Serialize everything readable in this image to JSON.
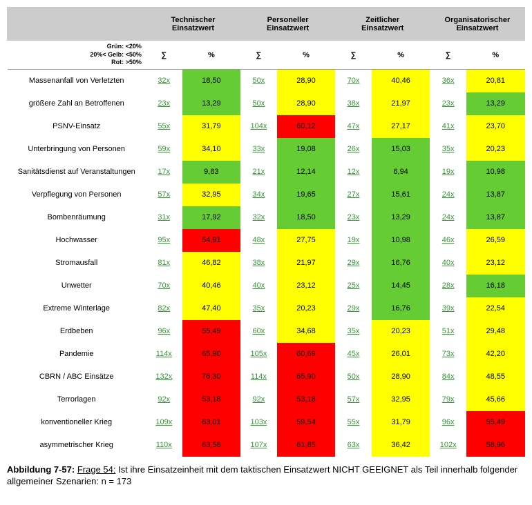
{
  "colors": {
    "green": "#66cc33",
    "yellow": "#ffff00",
    "red": "#ff0000",
    "header_bg": "#cccccc",
    "link": "#339933",
    "text": "#000000"
  },
  "thresholds": {
    "green_lt": 20,
    "yellow_lt": 50
  },
  "legend": {
    "line1": "Grün: <20%",
    "line2": "20%< Gelb: <50%",
    "line3": "Rot: >50%"
  },
  "column_groups": [
    "Technischer Einsatzwert",
    "Personeller Einsatzwert",
    "Zeitlicher Einsatzwert",
    "Organisatorischer Einsatzwert"
  ],
  "subheaders": {
    "sigma": "∑",
    "pct": "%"
  },
  "rows": [
    {
      "label": "Massenanfall von Verletzten",
      "cells": [
        {
          "s": "32x",
          "p": "18,50"
        },
        {
          "s": "50x",
          "p": "28,90"
        },
        {
          "s": "70x",
          "p": "40,46"
        },
        {
          "s": "36x",
          "p": "20,81"
        }
      ]
    },
    {
      "label": "größere Zahl an Betroffenen",
      "cells": [
        {
          "s": "23x",
          "p": "13,29"
        },
        {
          "s": "50x",
          "p": "28,90"
        },
        {
          "s": "38x",
          "p": "21,97"
        },
        {
          "s": "23x",
          "p": "13,29"
        }
      ]
    },
    {
      "label": "PSNV-Einsatz",
      "cells": [
        {
          "s": "55x",
          "p": "31,79"
        },
        {
          "s": "104x",
          "p": "60,12"
        },
        {
          "s": "47x",
          "p": "27,17"
        },
        {
          "s": "41x",
          "p": "23,70"
        }
      ]
    },
    {
      "label": "Unterbringung von Personen",
      "cells": [
        {
          "s": "59x",
          "p": "34,10"
        },
        {
          "s": "33x",
          "p": "19,08"
        },
        {
          "s": "26x",
          "p": "15,03"
        },
        {
          "s": "35x",
          "p": "20,23"
        }
      ]
    },
    {
      "label": "Sanitätsdienst auf Veranstaltungen",
      "cells": [
        {
          "s": "17x",
          "p": "9,83"
        },
        {
          "s": "21x",
          "p": "12,14"
        },
        {
          "s": "12x",
          "p": "6,94"
        },
        {
          "s": "19x",
          "p": "10,98"
        }
      ]
    },
    {
      "label": "Verpflegung von Personen",
      "cells": [
        {
          "s": "57x",
          "p": "32,95"
        },
        {
          "s": "34x",
          "p": "19,65"
        },
        {
          "s": "27x",
          "p": "15,61"
        },
        {
          "s": "24x",
          "p": "13,87"
        }
      ]
    },
    {
      "label": "Bombenräumung",
      "cells": [
        {
          "s": "31x",
          "p": "17,92"
        },
        {
          "s": "32x",
          "p": "18,50"
        },
        {
          "s": "23x",
          "p": "13,29"
        },
        {
          "s": "24x",
          "p": "13,87"
        }
      ]
    },
    {
      "label": "Hochwasser",
      "cells": [
        {
          "s": "95x",
          "p": "54,91"
        },
        {
          "s": "48x",
          "p": "27,75"
        },
        {
          "s": "19x",
          "p": "10,98"
        },
        {
          "s": "46x",
          "p": "26,59"
        }
      ]
    },
    {
      "label": "Stromausfall",
      "cells": [
        {
          "s": "81x",
          "p": "46,82"
        },
        {
          "s": "38x",
          "p": "21,97"
        },
        {
          "s": "29x",
          "p": "16,76"
        },
        {
          "s": "40x",
          "p": "23,12"
        }
      ]
    },
    {
      "label": "Unwetter",
      "cells": [
        {
          "s": "70x",
          "p": "40,46"
        },
        {
          "s": "40x",
          "p": "23,12"
        },
        {
          "s": "25x",
          "p": "14,45"
        },
        {
          "s": "28x",
          "p": "16,18"
        }
      ]
    },
    {
      "label": "Extreme Winterlage",
      "cells": [
        {
          "s": "82x",
          "p": "47,40"
        },
        {
          "s": "35x",
          "p": "20,23"
        },
        {
          "s": "29x",
          "p": "16,76"
        },
        {
          "s": "39x",
          "p": "22,54"
        }
      ]
    },
    {
      "label": "Erdbeben",
      "cells": [
        {
          "s": "96x",
          "p": "55,49"
        },
        {
          "s": "60x",
          "p": "34,68"
        },
        {
          "s": "35x",
          "p": "20,23"
        },
        {
          "s": "51x",
          "p": "29,48"
        }
      ]
    },
    {
      "label": "Pandemie",
      "cells": [
        {
          "s": "114x",
          "p": "65,90"
        },
        {
          "s": "105x",
          "p": "60,69"
        },
        {
          "s": "45x",
          "p": "26,01"
        },
        {
          "s": "73x",
          "p": "42,20"
        }
      ]
    },
    {
      "label": "CBRN / ABC Einsätze",
      "cells": [
        {
          "s": "132x",
          "p": "76,30"
        },
        {
          "s": "114x",
          "p": "65,90"
        },
        {
          "s": "50x",
          "p": "28,90"
        },
        {
          "s": "84x",
          "p": "48,55"
        }
      ]
    },
    {
      "label": "Terrorlagen",
      "cells": [
        {
          "s": "92x",
          "p": "53,18"
        },
        {
          "s": "92x",
          "p": "53,18"
        },
        {
          "s": "57x",
          "p": "32,95"
        },
        {
          "s": "79x",
          "p": "45,66"
        }
      ]
    },
    {
      "label": "konventioneller Krieg",
      "cells": [
        {
          "s": "109x",
          "p": "63,01"
        },
        {
          "s": "103x",
          "p": "59,54"
        },
        {
          "s": "55x",
          "p": "31,79"
        },
        {
          "s": "96x",
          "p": "55,49"
        }
      ]
    },
    {
      "label": "asymmetrischer Krieg",
      "cells": [
        {
          "s": "110x",
          "p": "63,58"
        },
        {
          "s": "107x",
          "p": "61,85"
        },
        {
          "s": "63x",
          "p": "36,42"
        },
        {
          "s": "102x",
          "p": "58,96"
        }
      ]
    }
  ],
  "caption": {
    "fig_label": "Abbildung 7-57:",
    "question_label": "Frage 54:",
    "text": "Ist ihre Einsatzeinheit mit dem taktischen Einsatzwert NICHT GEEIGNET als Teil innerhalb folgender allgemeiner Szenarien: n = 173"
  }
}
